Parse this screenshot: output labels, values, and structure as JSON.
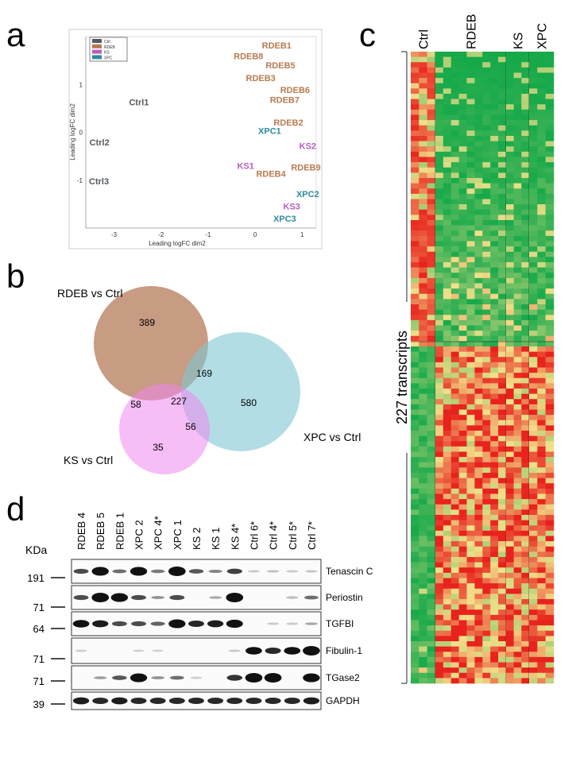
{
  "panel_letters": {
    "a": "a",
    "b": "b",
    "c": "c",
    "d": "d"
  },
  "chart_data": [
    {
      "type": "scatter",
      "panel": "a",
      "xlabel": "Leading logFC dim2",
      "ylabel": "Leading logFC dim2",
      "xlim": [
        -3.6,
        1.3
      ],
      "ylim": [
        -2,
        2
      ],
      "xticks": [
        "-3",
        "-2",
        "-1",
        "0",
        "1"
      ],
      "yticks": [
        "1",
        "0",
        "-1"
      ],
      "legend": {
        "placement": "top-left",
        "entries": [
          {
            "label": "Ctrl",
            "color": "#555a5e"
          },
          {
            "label": "RDEB",
            "color": "#b87a50"
          },
          {
            "label": "KS",
            "color": "#b65fc0"
          },
          {
            "label": "XPC",
            "color": "#2f8a9c"
          }
        ]
      },
      "points": [
        {
          "label": "RDEB1",
          "group": "RDEB",
          "x": 0.46,
          "y": 1.82
        },
        {
          "label": "RDEB8",
          "group": "RDEB",
          "x": -0.14,
          "y": 1.59
        },
        {
          "label": "RDEB5",
          "group": "RDEB",
          "x": 0.54,
          "y": 1.4
        },
        {
          "label": "RDEB3",
          "group": "RDEB",
          "x": 0.12,
          "y": 1.14
        },
        {
          "label": "RDEB6",
          "group": "RDEB",
          "x": 0.85,
          "y": 0.89
        },
        {
          "label": "RDEB7",
          "group": "RDEB",
          "x": 0.63,
          "y": 0.68
        },
        {
          "label": "Ctrl1",
          "group": "Ctrl",
          "x": -2.47,
          "y": 0.63
        },
        {
          "label": "RDEB2",
          "group": "RDEB",
          "x": 0.71,
          "y": 0.21
        },
        {
          "label": "XPC1",
          "group": "XPC",
          "x": 0.31,
          "y": 0.03
        },
        {
          "label": "Ctrl2",
          "group": "Ctrl",
          "x": -3.31,
          "y": -0.21
        },
        {
          "label": "KS2",
          "group": "KS",
          "x": 1.12,
          "y": -0.28
        },
        {
          "label": "KS1",
          "group": "KS",
          "x": -0.15,
          "y": -0.7
        },
        {
          "label": "RDEB9",
          "group": "RDEB",
          "x": 1.08,
          "y": -0.73
        },
        {
          "label": "RDEB4",
          "group": "RDEB",
          "x": 0.44,
          "y": -0.85
        },
        {
          "label": "Ctrl3",
          "group": "Ctrl",
          "x": -3.32,
          "y": -1.02
        },
        {
          "label": "XPC2",
          "group": "XPC",
          "x": 1.12,
          "y": -1.3
        },
        {
          "label": "KS3",
          "group": "KS",
          "x": 0.78,
          "y": -1.51
        },
        {
          "label": "XPC3",
          "group": "XPC",
          "x": 0.63,
          "y": -1.8
        }
      ]
    },
    {
      "type": "venn",
      "panel": "b",
      "sets": [
        {
          "label": "RDEB vs Ctrl",
          "color": "#b57a5a"
        },
        {
          "label": "XPC vs Ctrl",
          "color": "#7fc6d2"
        },
        {
          "label": "KS vs Ctrl",
          "color": "#ee86ee"
        }
      ],
      "regions": {
        "RDEB_only": "389",
        "XPC_only": "580",
        "KS_only": "35",
        "RDEB_XPC": "169",
        "RDEB_KS": "58",
        "XPC_KS": "56",
        "all": "227"
      }
    },
    {
      "type": "heatmap",
      "panel": "c",
      "row_label": "227 transcripts",
      "column_groups": [
        {
          "label": "Ctrl",
          "columns": 3
        },
        {
          "label": "RDEB",
          "columns": 9
        },
        {
          "label": "KS",
          "columns": 3
        },
        {
          "label": "XPC",
          "columns": 3
        }
      ],
      "colors": {
        "high": "#e8221c",
        "mid": "#f3e08a",
        "low": "#16a94a"
      }
    },
    {
      "type": "table",
      "panel": "d",
      "unit_label": "KDa",
      "lanes": [
        "RDEB 4",
        "RDEB 5",
        "RDEB 1",
        "XPC 2",
        "XPC 4*",
        "XPC 1",
        "KS 2",
        "KS 1",
        "KS 4*",
        "Ctrl 6*",
        "Ctrl 4*",
        "Ctrl 5*",
        "Ctrl 7*"
      ],
      "blots": [
        {
          "protein": "Tenascin C",
          "kda": "191",
          "intensity": [
            0.6,
            0.95,
            0.45,
            0.95,
            0.4,
            1.0,
            0.55,
            0.35,
            0.65,
            0.05,
            0.1,
            0.05,
            0.08
          ]
        },
        {
          "protein": "Periostin",
          "kda": "71",
          "intensity": [
            0.6,
            1.0,
            0.95,
            0.6,
            0.3,
            0.6,
            0.0,
            0.2,
            1.0,
            0.0,
            0.0,
            0.12,
            0.45
          ]
        },
        {
          "protein": "TGFBI",
          "kda": "64",
          "intensity": [
            0.85,
            0.8,
            0.6,
            0.6,
            0.5,
            0.95,
            0.75,
            0.8,
            0.9,
            0.0,
            0.05,
            0.05,
            0.2
          ]
        },
        {
          "protein": "Fibulin-1",
          "kda": "71",
          "intensity": [
            0.03,
            0.0,
            0.0,
            0.02,
            0.02,
            0.0,
            0.0,
            0.0,
            0.05,
            0.85,
            0.75,
            0.85,
            1.0
          ]
        },
        {
          "protein": "TGase2",
          "kda": "71",
          "intensity": [
            0.0,
            0.25,
            0.55,
            0.95,
            0.3,
            0.45,
            0.03,
            0.0,
            0.7,
            1.0,
            1.0,
            0.0,
            0.95
          ]
        },
        {
          "protein": "GAPDH",
          "kda": "39",
          "intensity": [
            0.8,
            0.75,
            0.8,
            0.75,
            0.75,
            0.75,
            0.75,
            0.75,
            0.75,
            0.75,
            0.75,
            0.75,
            0.8
          ]
        }
      ]
    }
  ]
}
